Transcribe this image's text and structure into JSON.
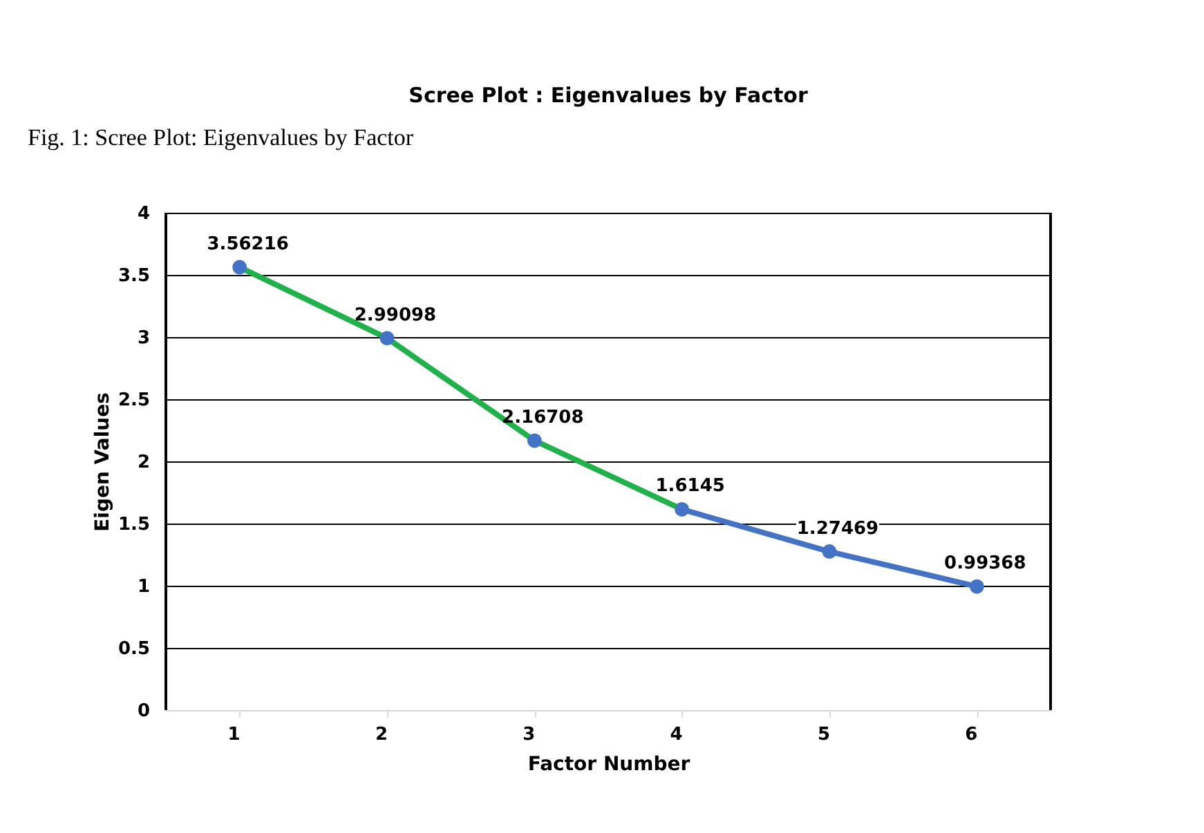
{
  "chart_data": {
    "type": "line",
    "title": "Scree Plot : Eigenvalues by Factor",
    "xlabel": "Factor Number",
    "ylabel": "Eigen Values",
    "annotations": [
      "Fig. 1: Scree Plot: Eigenvalues by Factor"
    ],
    "categories": [
      "1",
      "2",
      "3",
      "4",
      "5",
      "6"
    ],
    "series": [
      {
        "type": "line",
        "color": "#1fb14a",
        "values": [
          3.56216,
          2.99098,
          2.16708,
          1.6145,
          null,
          null
        ],
        "marker": "none"
      },
      {
        "type": "line",
        "color": "#4472c4",
        "values": [
          null,
          null,
          null,
          1.6145,
          1.27469,
          0.99368
        ],
        "marker": "none"
      },
      {
        "type": "scatter",
        "color": "#4472c4",
        "values": [
          3.56216,
          2.99098,
          2.16708,
          1.6145,
          1.27469,
          0.99368
        ],
        "marker": "circle",
        "value_labels": [
          "3.56216",
          "2.99098",
          "2.16708",
          "1.6145",
          "1.27469",
          "0.99368"
        ]
      }
    ],
    "ylim": [
      0,
      4
    ],
    "yticks": [
      0,
      0.5,
      1,
      1.5,
      2,
      2.5,
      3,
      3.5,
      4
    ],
    "grid": "y"
  }
}
